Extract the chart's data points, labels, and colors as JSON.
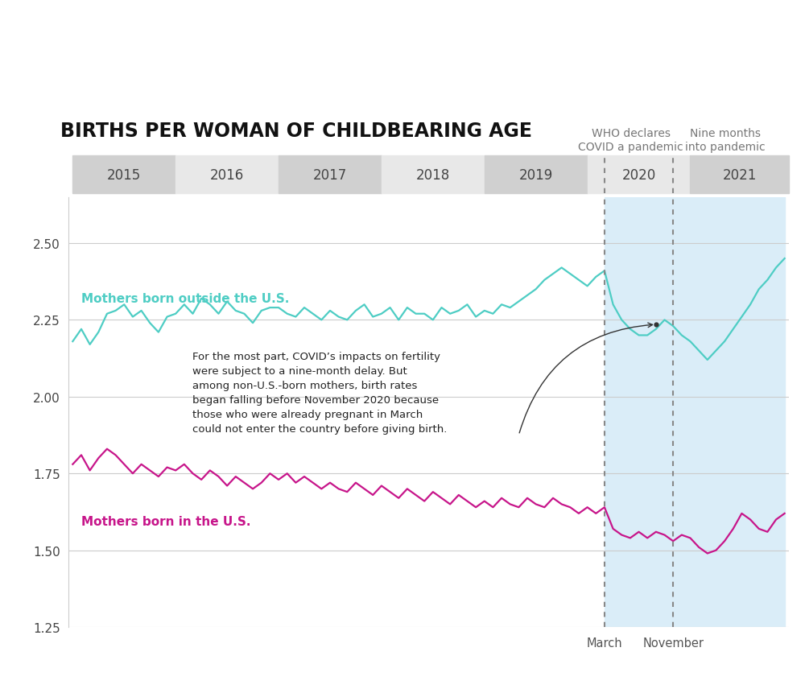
{
  "title": "BIRTHS PER WOMAN OF CHILDBEARING AGE",
  "title_color": "#111111",
  "years": [
    2015,
    2016,
    2017,
    2018,
    2019,
    2020,
    2021
  ],
  "outside_color": "#4ECDC4",
  "inside_color": "#C7158A",
  "outside_label": "Mothers born outside the U.S.",
  "inside_label": "Mothers born in the U.S.",
  "shade_color": "#daedf8",
  "ylim": [
    1.25,
    2.65
  ],
  "yticks": [
    1.25,
    1.5,
    1.75,
    2.0,
    2.25,
    2.5
  ],
  "annotation_text": "For the most part, COVID’s impacts on fertility\nwere subject to a nine-month delay. But\namong non-U.S.-born mothers, birth rates\nbegan falling before November 2020 because\nthose who were already pregnant in March\ncould not enter the country before giving birth.",
  "who_label": "WHO declares\nCOVID a pandemic",
  "nine_label": "Nine months\ninto pandemic",
  "march_label": "March",
  "nov_label": "November",
  "march_idx": 62,
  "nov_idx": 70,
  "n_months": 84,
  "band_colors_odd": "#d0d0d0",
  "band_colors_even": "#e8e8e8",
  "outside_data": [
    2.18,
    2.22,
    2.17,
    2.21,
    2.27,
    2.28,
    2.3,
    2.26,
    2.28,
    2.24,
    2.21,
    2.26,
    2.27,
    2.3,
    2.27,
    2.32,
    2.3,
    2.27,
    2.31,
    2.28,
    2.27,
    2.24,
    2.28,
    2.29,
    2.29,
    2.27,
    2.26,
    2.29,
    2.27,
    2.25,
    2.28,
    2.26,
    2.25,
    2.28,
    2.3,
    2.26,
    2.27,
    2.29,
    2.25,
    2.29,
    2.27,
    2.27,
    2.25,
    2.29,
    2.27,
    2.28,
    2.3,
    2.26,
    2.28,
    2.27,
    2.3,
    2.29,
    2.31,
    2.33,
    2.35,
    2.38,
    2.4,
    2.42,
    2.4,
    2.38,
    2.36,
    2.39,
    2.41,
    2.3,
    2.25,
    2.22,
    2.2,
    2.2,
    2.22,
    2.25,
    2.23,
    2.2,
    2.18,
    2.15,
    2.12,
    2.15,
    2.18,
    2.22,
    2.26,
    2.3,
    2.35,
    2.38,
    2.42,
    2.45
  ],
  "inside_data": [
    1.78,
    1.81,
    1.76,
    1.8,
    1.83,
    1.81,
    1.78,
    1.75,
    1.78,
    1.76,
    1.74,
    1.77,
    1.76,
    1.78,
    1.75,
    1.73,
    1.76,
    1.74,
    1.71,
    1.74,
    1.72,
    1.7,
    1.72,
    1.75,
    1.73,
    1.75,
    1.72,
    1.74,
    1.72,
    1.7,
    1.72,
    1.7,
    1.69,
    1.72,
    1.7,
    1.68,
    1.71,
    1.69,
    1.67,
    1.7,
    1.68,
    1.66,
    1.69,
    1.67,
    1.65,
    1.68,
    1.66,
    1.64,
    1.66,
    1.64,
    1.67,
    1.65,
    1.64,
    1.67,
    1.65,
    1.64,
    1.67,
    1.65,
    1.64,
    1.62,
    1.64,
    1.62,
    1.64,
    1.57,
    1.55,
    1.54,
    1.56,
    1.54,
    1.56,
    1.55,
    1.53,
    1.55,
    1.54,
    1.51,
    1.49,
    1.5,
    1.53,
    1.57,
    1.62,
    1.6,
    1.57,
    1.56,
    1.6,
    1.62
  ]
}
